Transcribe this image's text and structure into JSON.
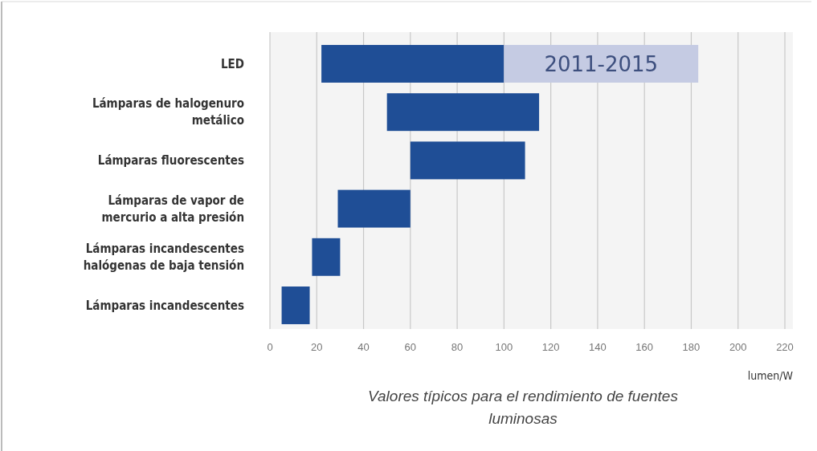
{
  "chart_data": {
    "type": "bar",
    "orientation": "horizontal",
    "title": "Valores típicos para el rendimiento de fuentes luminosas",
    "xlabel": "lumen/W",
    "categories": [
      "LED",
      "Lámparas de halogenuro metálico",
      "Lámparas fluorescentes",
      "Lámparas de vapor de mercurio a alta presión",
      "Lámparas incandescentes halógenas de baja tensión",
      "Lámparas incandescentes"
    ],
    "series": [
      {
        "color": "#1f4e96",
        "base": [
          22,
          50,
          60,
          29,
          18,
          5
        ],
        "values": [
          78,
          65,
          49,
          31,
          12,
          12
        ]
      },
      {
        "name": "2011-2015",
        "color": "#c5cbe3",
        "base": [
          100,
          null,
          null,
          null,
          null,
          null
        ],
        "values": [
          83,
          null,
          null,
          null,
          null,
          null
        ]
      }
    ],
    "xlim": [
      0,
      220
    ],
    "xticks": [
      0,
      20,
      40,
      60,
      80,
      100,
      120,
      140,
      160,
      180,
      200,
      220
    ],
    "grid": "x",
    "legend": false
  }
}
